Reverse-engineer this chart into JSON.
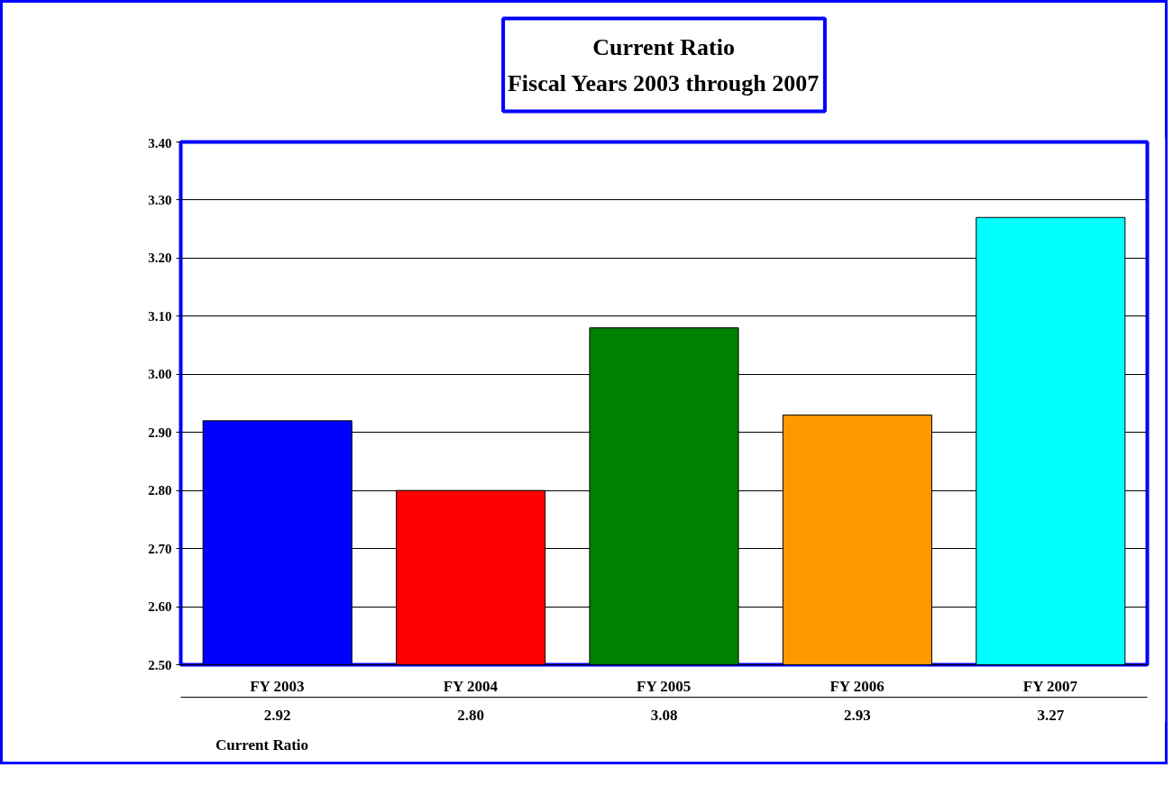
{
  "chart_data": {
    "type": "bar",
    "title": "Current Ratio",
    "subtitle": "Fiscal Years 2003 through 2007",
    "categories": [
      "FY 2003",
      "FY 2004",
      "FY 2005",
      "FY 2006",
      "FY 2007"
    ],
    "series": [
      {
        "name": "Current Ratio",
        "colors": [
          "#0000ff",
          "#ff0000",
          "#008000",
          "#ff9900",
          "#00ffff"
        ],
        "values": [
          2.92,
          2.8,
          3.08,
          2.93,
          3.27
        ],
        "value_labels": [
          "2.92",
          "2.80",
          "3.08",
          "2.93",
          "3.27"
        ]
      }
    ],
    "ylim": [
      2.5,
      3.4
    ],
    "yticks": [
      {
        "value": 2.5,
        "label": "2.50"
      },
      {
        "value": 2.6,
        "label": "2.60"
      },
      {
        "value": 2.7,
        "label": "2.70"
      },
      {
        "value": 2.8,
        "label": "2.80"
      },
      {
        "value": 2.9,
        "label": "2.90"
      },
      {
        "value": 3.0,
        "label": "3.00"
      },
      {
        "value": 3.1,
        "label": "3.10"
      },
      {
        "value": 3.2,
        "label": "3.20"
      },
      {
        "value": 3.3,
        "label": "3.30"
      },
      {
        "value": 3.4,
        "label": "3.40"
      }
    ],
    "grid": "y",
    "legend": "bottom",
    "data_labels": true
  }
}
